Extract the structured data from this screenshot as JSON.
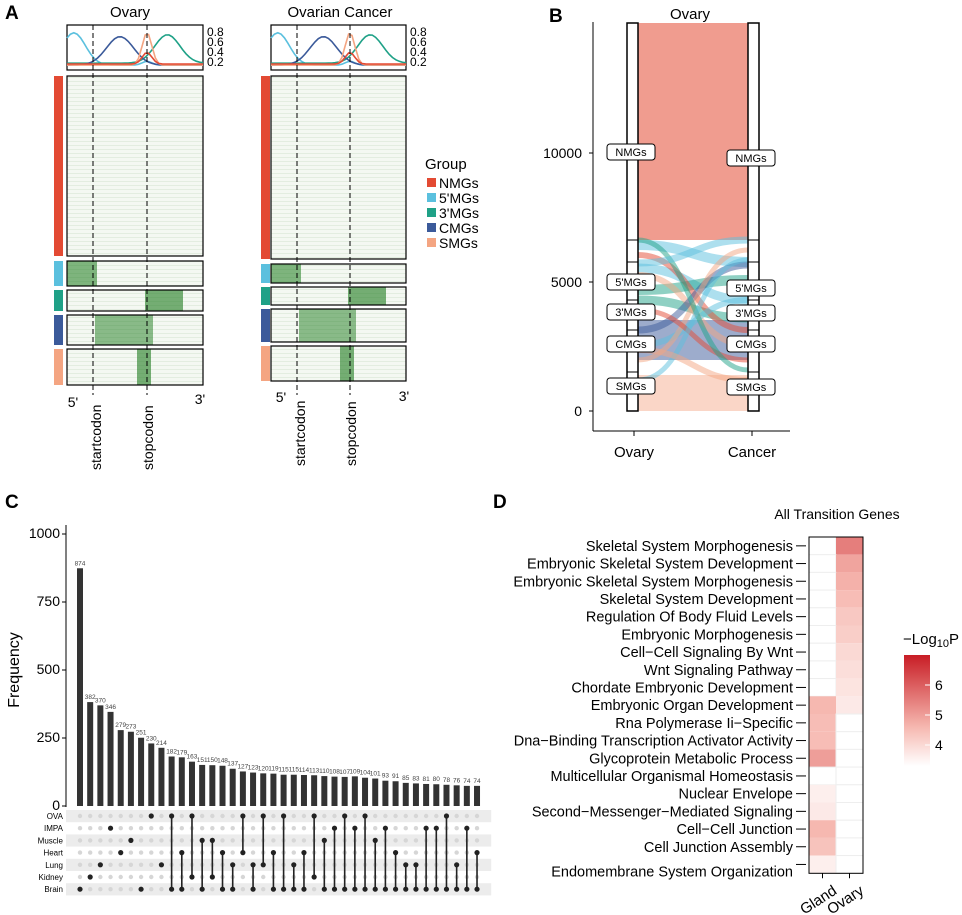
{
  "panels": {
    "a": "A",
    "b": "B",
    "c": "C",
    "d": "D"
  },
  "colors": {
    "NMGs": "#e34a33",
    "5'MGs": "#5bc0de",
    "3'MGs": "#1fa187",
    "CMGs": "#3b5a9a",
    "SMGs": "#f4a582",
    "heat_green": "#1e7b1e",
    "sig_low": "#ffffff",
    "sig_high": "#c81d25",
    "bar": "#333333"
  },
  "chart_data": [
    {
      "id": "A",
      "type": "heatmap",
      "title_left": "Ovary",
      "title_right": "Ovarian Cancer",
      "profile_ticks": [
        "0.8",
        "0.6",
        "0.4",
        "0.2"
      ],
      "x_ticks": [
        "5'",
        "3'"
      ],
      "markers": [
        "startcodon",
        "stopcodon"
      ],
      "legend_title": "Group",
      "groups": [
        "NMGs",
        "5'MGs",
        "3'MGs",
        "CMGs",
        "SMGs"
      ]
    },
    {
      "id": "B",
      "type": "alluvial",
      "title": "Ovary",
      "axes": [
        "Ovary",
        "Cancer"
      ],
      "y_ticks": [
        0,
        5000,
        10000
      ],
      "ylim": [
        0,
        15000
      ],
      "strata": [
        "NMGs",
        "5'MGs",
        "3'MGs",
        "CMGs",
        "SMGs"
      ]
    },
    {
      "id": "C",
      "type": "bar",
      "ylabel": "Frequency",
      "y_ticks": [
        0,
        250,
        500,
        750,
        1000
      ],
      "ylim": [
        0,
        1000
      ],
      "values": [
        874,
        382,
        370,
        346,
        279,
        273,
        251,
        230,
        214,
        182,
        179,
        163,
        151,
        150,
        148,
        137,
        127,
        123,
        120,
        119,
        115,
        115,
        114,
        113,
        110,
        108,
        107,
        109,
        104,
        101,
        93,
        91,
        85,
        83,
        81,
        80,
        78,
        76,
        74,
        74
      ],
      "labels": [
        "874",
        "382",
        "370",
        "346",
        "279",
        "273",
        "251",
        "230",
        "214",
        "182",
        "179",
        "163",
        "151",
        "150",
        "148",
        "137",
        "127",
        "123",
        "120",
        "119",
        "115",
        "115",
        "114",
        "113",
        "110",
        "108",
        "107",
        "109",
        "104",
        "101",
        "93",
        "91",
        "85",
        "83",
        "81",
        "80",
        "78",
        "76",
        "74",
        "74"
      ],
      "sets": [
        "OVA",
        "IMPA",
        "Muscle",
        "Heart",
        "Lung",
        "Kidney",
        "Brain"
      ],
      "membership": [
        [
          6
        ],
        [
          5
        ],
        [
          4
        ],
        [
          1
        ],
        [
          3
        ],
        [
          2
        ],
        [
          6
        ],
        [
          0
        ],
        [
          4
        ],
        [
          0,
          6
        ],
        [
          3,
          6
        ],
        [
          0,
          5
        ],
        [
          2,
          6
        ],
        [
          2,
          5
        ],
        [
          3,
          6
        ],
        [
          4,
          6
        ],
        [
          0,
          3
        ],
        [
          4,
          6
        ],
        [
          0,
          4
        ],
        [
          3,
          6
        ],
        [
          0,
          6
        ],
        [
          4,
          6
        ],
        [
          3,
          6
        ],
        [
          0,
          5
        ],
        [
          2,
          6
        ],
        [
          1,
          6
        ],
        [
          0,
          6
        ],
        [
          1,
          6
        ],
        [
          0,
          6
        ],
        [
          2,
          6
        ],
        [
          1,
          6
        ],
        [
          3,
          6
        ],
        [
          4,
          6
        ],
        [
          4,
          6
        ],
        [
          1,
          6
        ],
        [
          1,
          6
        ],
        [
          0,
          6
        ],
        [
          4,
          6
        ],
        [
          1,
          6
        ],
        [
          3,
          6
        ]
      ]
    },
    {
      "id": "D",
      "type": "heatmap",
      "title": "All Transition Genes",
      "columns": [
        "Gland",
        "Ovary"
      ],
      "terms": [
        "Skeletal System Morphogenesis",
        "Embryonic Skeletal System Development",
        "Embryonic Skeletal System Morphogenesis",
        "Skeletal System Development",
        "Regulation Of Body Fluid Levels",
        "Embryonic Morphogenesis",
        "Cell−Cell Signaling By Wnt",
        "Wnt Signaling Pathway",
        "Chordate Embryonic Development",
        "Embryonic Organ Development",
        "Rna Polymerase Ii−Specific",
        "Dna−Binding Transcription Activator Activity",
        "Glycoprotein Metabolic Process",
        "Multicellular Organismal Homeostasis",
        "Nuclear Envelope",
        "Second−Messenger−Mediated Signaling",
        "Cell−Cell Junction",
        "Cell Junction Assembly",
        "Endomembrane System Organization"
      ],
      "gland": [
        null,
        null,
        null,
        null,
        null,
        null,
        null,
        null,
        null,
        4.6,
        4.5,
        4.5,
        5.0,
        null,
        3.6,
        3.7,
        4.6,
        4.4,
        3.6
      ],
      "ovary": [
        5.5,
        4.9,
        4.7,
        4.5,
        4.3,
        4.2,
        4.0,
        3.9,
        3.8,
        3.7,
        null,
        null,
        null,
        null,
        null,
        null,
        null,
        null,
        null
      ],
      "legend_title_prefix": "−Log",
      "legend_title_sub": "10",
      "legend_title_suffix": "P",
      "legend_ticks": [
        4,
        5,
        6
      ],
      "range": [
        3.3,
        7.0
      ]
    }
  ]
}
